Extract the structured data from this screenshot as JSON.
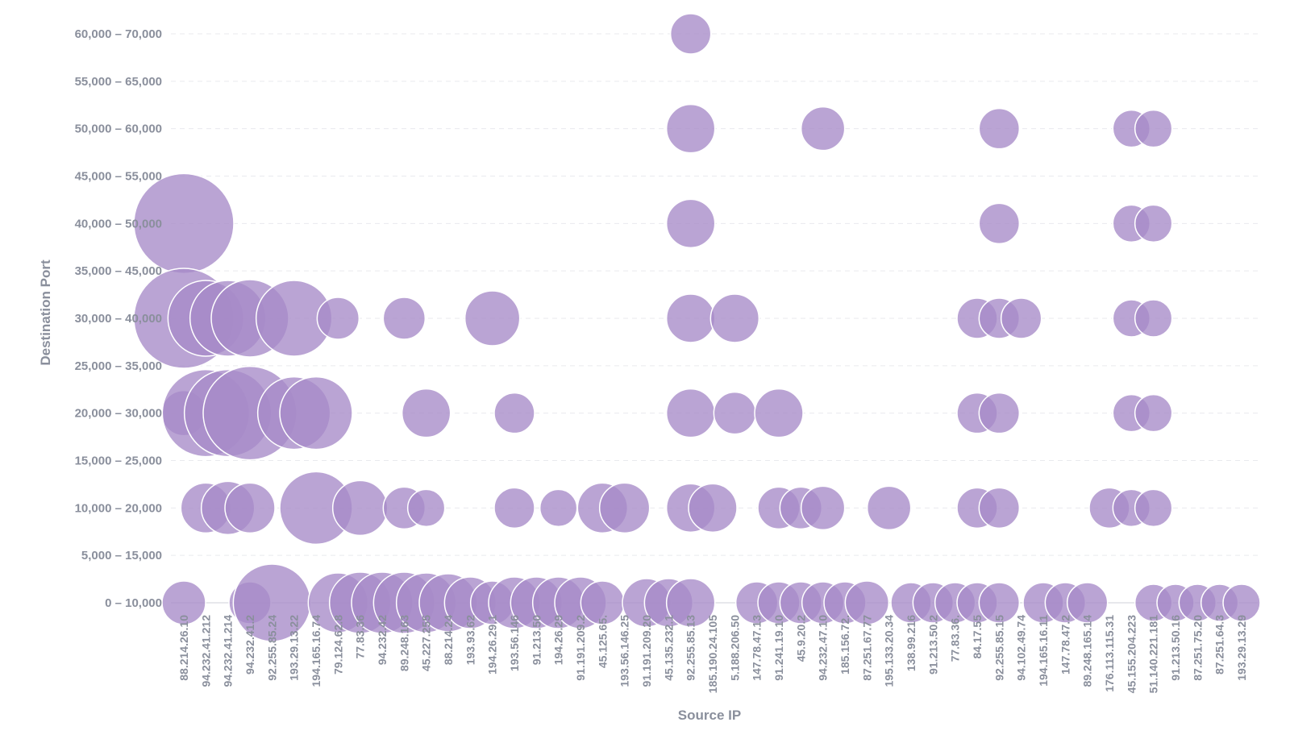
{
  "chart_data": {
    "type": "scatter",
    "xlabel": "Source IP",
    "ylabel": "Destination Port",
    "bubble_color": "#a78bc8",
    "y_categories": [
      "0 – 10,000",
      "5,000 – 15,000",
      "10,000 – 20,000",
      "15,000 – 25,000",
      "20,000 – 30,000",
      "25,000 – 35,000",
      "30,000 – 40,000",
      "35,000 – 45,000",
      "40,000 – 50,000",
      "45,000 – 55,000",
      "50,000 – 60,000",
      "55,000 – 65,000",
      "60,000 – 70,000"
    ],
    "x_categories": [
      "88.214.26.10",
      "94.232.41.212",
      "94.232.41.214",
      "94.232.41.2",
      "92.255.85.24",
      "193.29.13.22",
      "194.165.16.74",
      "79.124.62.8",
      "77.83.36",
      "94.232.42",
      "89.248.163",
      "45.227.255",
      "88.214.24",
      "193.93.62",
      "194.26.29.1",
      "193.56.146",
      "91.213.50",
      "194.26.29",
      "91.191.209.2",
      "45.125.65.",
      "193.56.146.25",
      "91.191.209.20",
      "45.135.232.1",
      "92.255.85.13",
      "185.190.24.105",
      "5.188.206.50",
      "147.78.47.13",
      "91.241.19.10",
      "45.9.20.2",
      "94.232.47.10",
      "185.156.72.",
      "87.251.67.77",
      "195.133.20.34",
      "138.99.216",
      "91.213.50.2",
      "77.83.36.",
      "84.17.55",
      "92.255.85.15",
      "94.102.49.74",
      "194.165.16.11",
      "147.78.47.2",
      "89.248.165.14",
      "176.113.115.31",
      "45.155.204.223",
      "51.140.221.181",
      "91.213.50.16",
      "87.251.75.20",
      "87.251.64.3",
      "193.29.13.29"
    ],
    "points": [
      {
        "x": "88.214.26.10",
        "y": "40,000 – 50,000",
        "size": 62
      },
      {
        "x": "88.214.26.10",
        "y": "30,000 – 40,000",
        "size": 62
      },
      {
        "x": "88.214.26.10",
        "y": "20,000 – 30,000",
        "size": 28
      },
      {
        "x": "88.214.26.10",
        "y": "0 – 10,000",
        "size": 27
      },
      {
        "x": "94.232.41.212",
        "y": "30,000 – 40,000",
        "size": 47
      },
      {
        "x": "94.232.41.212",
        "y": "20,000 – 30,000",
        "size": 54
      },
      {
        "x": "94.232.41.212",
        "y": "10,000 – 20,000",
        "size": 31
      },
      {
        "x": "94.232.41.214",
        "y": "30,000 – 40,000",
        "size": 47
      },
      {
        "x": "94.232.41.214",
        "y": "20,000 – 30,000",
        "size": 54
      },
      {
        "x": "94.232.41.214",
        "y": "10,000 – 20,000",
        "size": 33
      },
      {
        "x": "94.232.41.2",
        "y": "30,000 – 40,000",
        "size": 48
      },
      {
        "x": "94.232.41.2",
        "y": "20,000 – 30,000",
        "size": 58
      },
      {
        "x": "94.232.41.2",
        "y": "10,000 – 20,000",
        "size": 31
      },
      {
        "x": "94.232.41.2",
        "y": "0 – 10,000",
        "size": 26
      },
      {
        "x": "92.255.85.24",
        "y": "0 – 10,000",
        "size": 48
      },
      {
        "x": "193.29.13.22",
        "y": "30,000 – 40,000",
        "size": 47
      },
      {
        "x": "193.29.13.22",
        "y": "20,000 – 30,000",
        "size": 45
      },
      {
        "x": "194.165.16.74",
        "y": "20,000 – 30,000",
        "size": 45
      },
      {
        "x": "194.165.16.74",
        "y": "10,000 – 20,000",
        "size": 45
      },
      {
        "x": "79.124.62.8",
        "y": "30,000 – 40,000",
        "size": 26
      },
      {
        "x": "79.124.62.8",
        "y": "0 – 10,000",
        "size": 37
      },
      {
        "x": "77.83.36",
        "y": "10,000 – 20,000",
        "size": 34
      },
      {
        "x": "77.83.36",
        "y": "0 – 10,000",
        "size": 38
      },
      {
        "x": "94.232.42",
        "y": "0 – 10,000",
        "size": 38
      },
      {
        "x": "89.248.163",
        "y": "30,000 – 40,000",
        "size": 26
      },
      {
        "x": "89.248.163",
        "y": "10,000 – 20,000",
        "size": 26
      },
      {
        "x": "89.248.163",
        "y": "0 – 10,000",
        "size": 38
      },
      {
        "x": "45.227.255",
        "y": "20,000 – 30,000",
        "size": 30
      },
      {
        "x": "45.227.255",
        "y": "10,000 – 20,000",
        "size": 23
      },
      {
        "x": "45.227.255",
        "y": "0 – 10,000",
        "size": 37
      },
      {
        "x": "88.214.24",
        "y": "0 – 10,000",
        "size": 36
      },
      {
        "x": "193.93.62",
        "y": "0 – 10,000",
        "size": 32
      },
      {
        "x": "194.26.29.1",
        "y": "30,000 – 40,000",
        "size": 34
      },
      {
        "x": "194.26.29.1",
        "y": "0 – 10,000",
        "size": 27
      },
      {
        "x": "193.56.146",
        "y": "20,000 – 30,000",
        "size": 25
      },
      {
        "x": "193.56.146",
        "y": "10,000 – 20,000",
        "size": 25
      },
      {
        "x": "193.56.146",
        "y": "0 – 10,000",
        "size": 32
      },
      {
        "x": "91.213.50",
        "y": "0 – 10,000",
        "size": 32
      },
      {
        "x": "194.26.29",
        "y": "10,000 – 20,000",
        "size": 23
      },
      {
        "x": "194.26.29",
        "y": "0 – 10,000",
        "size": 32
      },
      {
        "x": "91.191.209.2",
        "y": "0 – 10,000",
        "size": 32
      },
      {
        "x": "45.125.65.",
        "y": "10,000 – 20,000",
        "size": 31
      },
      {
        "x": "45.125.65.",
        "y": "0 – 10,000",
        "size": 27
      },
      {
        "x": "193.56.146.25",
        "y": "10,000 – 20,000",
        "size": 31
      },
      {
        "x": "91.191.209.20",
        "y": "0 – 10,000",
        "size": 30
      },
      {
        "x": "45.135.232.1",
        "y": "0 – 10,000",
        "size": 30
      },
      {
        "x": "92.255.85.13",
        "y": "60,000 – 70,000",
        "size": 25
      },
      {
        "x": "92.255.85.13",
        "y": "50,000 – 60,000",
        "size": 30
      },
      {
        "x": "92.255.85.13",
        "y": "40,000 – 50,000",
        "size": 30
      },
      {
        "x": "92.255.85.13",
        "y": "30,000 – 40,000",
        "size": 30
      },
      {
        "x": "92.255.85.13",
        "y": "20,000 – 30,000",
        "size": 30
      },
      {
        "x": "92.255.85.13",
        "y": "10,000 – 20,000",
        "size": 30
      },
      {
        "x": "92.255.85.13",
        "y": "0 – 10,000",
        "size": 30
      },
      {
        "x": "185.190.24.105",
        "y": "10,000 – 20,000",
        "size": 30
      },
      {
        "x": "5.188.206.50",
        "y": "30,000 – 40,000",
        "size": 30
      },
      {
        "x": "5.188.206.50",
        "y": "20,000 – 30,000",
        "size": 26
      },
      {
        "x": "147.78.47.13",
        "y": "0 – 10,000",
        "size": 26
      },
      {
        "x": "91.241.19.10",
        "y": "20,000 – 30,000",
        "size": 30
      },
      {
        "x": "91.241.19.10",
        "y": "10,000 – 20,000",
        "size": 26
      },
      {
        "x": "91.241.19.10",
        "y": "0 – 10,000",
        "size": 26
      },
      {
        "x": "45.9.20.2",
        "y": "10,000 – 20,000",
        "size": 26
      },
      {
        "x": "45.9.20.2",
        "y": "0 – 10,000",
        "size": 26
      },
      {
        "x": "94.232.47.10",
        "y": "50,000 – 60,000",
        "size": 27
      },
      {
        "x": "94.232.47.10",
        "y": "10,000 – 20,000",
        "size": 27
      },
      {
        "x": "94.232.47.10",
        "y": "0 – 10,000",
        "size": 26
      },
      {
        "x": "185.156.72.",
        "y": "0 – 10,000",
        "size": 26
      },
      {
        "x": "87.251.67.77",
        "y": "0 – 10,000",
        "size": 27
      },
      {
        "x": "195.133.20.34",
        "y": "10,000 – 20,000",
        "size": 27
      },
      {
        "x": "138.99.216",
        "y": "0 – 10,000",
        "size": 25
      },
      {
        "x": "91.213.50.2",
        "y": "0 – 10,000",
        "size": 25
      },
      {
        "x": "77.83.36.",
        "y": "0 – 10,000",
        "size": 25
      },
      {
        "x": "84.17.55",
        "y": "30,000 – 40,000",
        "size": 25
      },
      {
        "x": "84.17.55",
        "y": "20,000 – 30,000",
        "size": 25
      },
      {
        "x": "84.17.55",
        "y": "10,000 – 20,000",
        "size": 25
      },
      {
        "x": "84.17.55",
        "y": "0 – 10,000",
        "size": 25
      },
      {
        "x": "92.255.85.15",
        "y": "50,000 – 60,000",
        "size": 25
      },
      {
        "x": "92.255.85.15",
        "y": "40,000 – 50,000",
        "size": 25
      },
      {
        "x": "92.255.85.15",
        "y": "30,000 – 40,000",
        "size": 25
      },
      {
        "x": "92.255.85.15",
        "y": "20,000 – 30,000",
        "size": 25
      },
      {
        "x": "92.255.85.15",
        "y": "10,000 – 20,000",
        "size": 25
      },
      {
        "x": "92.255.85.15",
        "y": "0 – 10,000",
        "size": 25
      },
      {
        "x": "94.102.49.74",
        "y": "30,000 – 40,000",
        "size": 25
      },
      {
        "x": "194.165.16.11",
        "y": "0 – 10,000",
        "size": 25
      },
      {
        "x": "147.78.47.2",
        "y": "0 – 10,000",
        "size": 25
      },
      {
        "x": "89.248.165.14",
        "y": "0 – 10,000",
        "size": 25
      },
      {
        "x": "176.113.115.31",
        "y": "10,000 – 20,000",
        "size": 25
      },
      {
        "x": "45.155.204.223",
        "y": "50,000 – 60,000",
        "size": 23
      },
      {
        "x": "45.155.204.223",
        "y": "40,000 – 50,000",
        "size": 23
      },
      {
        "x": "45.155.204.223",
        "y": "30,000 – 40,000",
        "size": 23
      },
      {
        "x": "45.155.204.223",
        "y": "20,000 – 30,000",
        "size": 23
      },
      {
        "x": "45.155.204.223",
        "y": "10,000 – 20,000",
        "size": 23
      },
      {
        "x": "51.140.221.181",
        "y": "50,000 – 60,000",
        "size": 23
      },
      {
        "x": "51.140.221.181",
        "y": "40,000 – 50,000",
        "size": 23
      },
      {
        "x": "51.140.221.181",
        "y": "30,000 – 40,000",
        "size": 23
      },
      {
        "x": "51.140.221.181",
        "y": "20,000 – 30,000",
        "size": 23
      },
      {
        "x": "51.140.221.181",
        "y": "10,000 – 20,000",
        "size": 23
      },
      {
        "x": "51.140.221.181",
        "y": "0 – 10,000",
        "size": 23
      },
      {
        "x": "91.213.50.16",
        "y": "0 – 10,000",
        "size": 23
      },
      {
        "x": "87.251.75.20",
        "y": "0 – 10,000",
        "size": 23
      },
      {
        "x": "87.251.64.3",
        "y": "0 – 10,000",
        "size": 23
      },
      {
        "x": "193.29.13.29",
        "y": "0 – 10,000",
        "size": 23
      }
    ]
  }
}
